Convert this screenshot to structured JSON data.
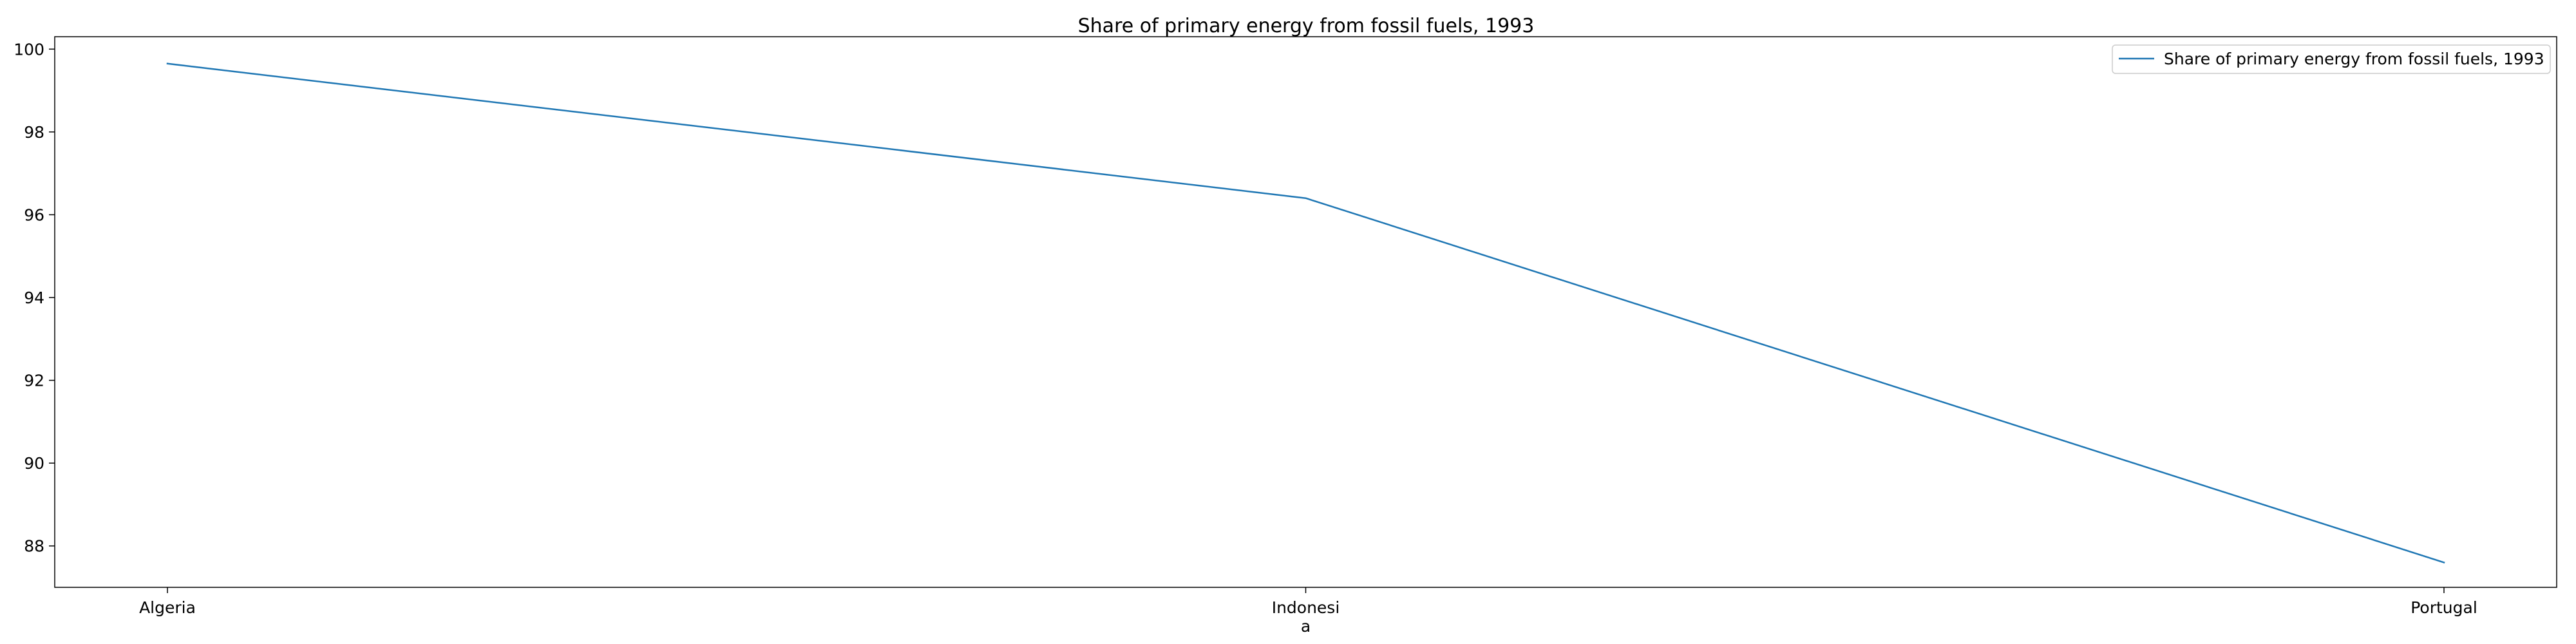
{
  "chart_data": {
    "type": "line",
    "title": "Share of primary energy from fossil fuels, 1993",
    "xlabel": "",
    "ylabel": "",
    "categories": [
      "Algeria",
      "Indonesia",
      "Portugal"
    ],
    "category_labels": [
      [
        "Algeria"
      ],
      [
        "Indonesi",
        "a"
      ],
      [
        "Portugal"
      ]
    ],
    "series": [
      {
        "name": "Share of primary energy from fossil fuels, 1993",
        "values": [
          99.65,
          96.4,
          87.6
        ],
        "color": "#1f77b4"
      }
    ],
    "ylim": [
      87.0,
      100.3
    ],
    "yticks": [
      88,
      90,
      92,
      94,
      96,
      98,
      100
    ],
    "grid": false,
    "legend_position": "top-right"
  }
}
